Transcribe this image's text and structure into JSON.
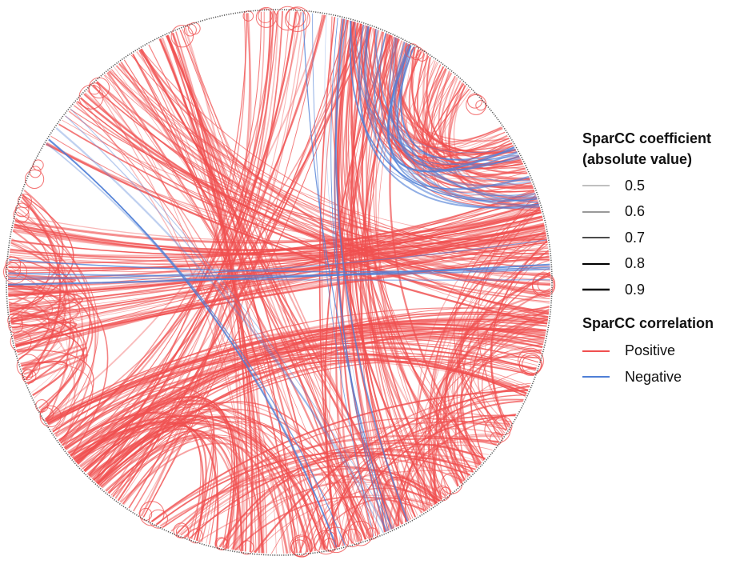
{
  "legend": {
    "coefficient_title_line1": "SparCC coefficient",
    "coefficient_title_line2": "(absolute value)",
    "coefficient_items": [
      {
        "label": "0.5",
        "value": 0.5
      },
      {
        "label": "0.6",
        "value": 0.6
      },
      {
        "label": "0.7",
        "value": 0.7
      },
      {
        "label": "0.8",
        "value": 0.8
      },
      {
        "label": "0.9",
        "value": 0.9
      }
    ],
    "correlation_title": "SparCC correlation",
    "correlation_items": [
      {
        "label": "Positive",
        "color": "#f05050"
      },
      {
        "label": "Negative",
        "color": "#4f7fd6"
      }
    ]
  },
  "colors": {
    "positive": "#f05050",
    "negative": "#4f7fd6",
    "rim": "#555555"
  }
}
